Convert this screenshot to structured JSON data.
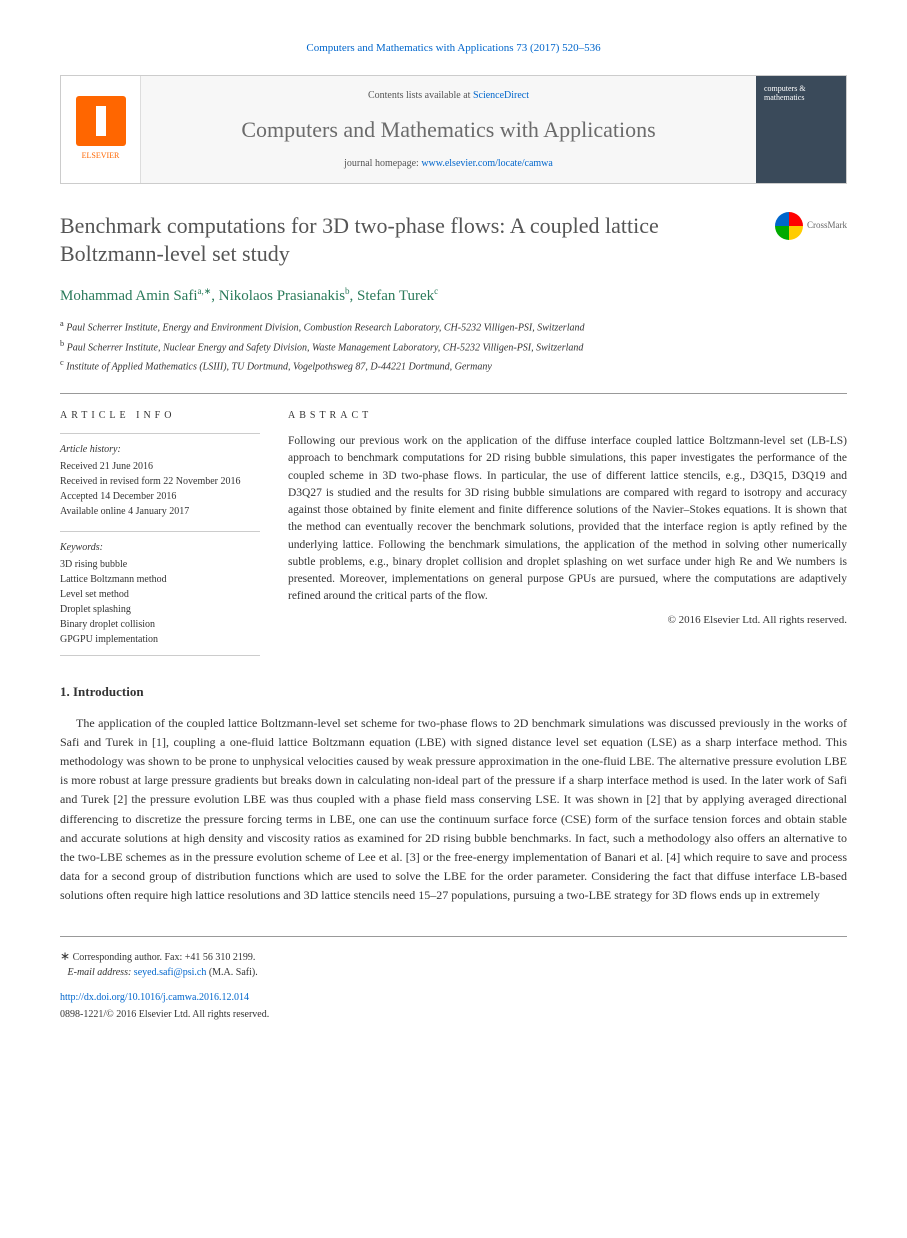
{
  "citation": "Computers and Mathematics with Applications 73 (2017) 520–536",
  "masthead": {
    "publisher_label": "ELSEVIER",
    "contents_prefix": "Contents lists available at ",
    "contents_link": "ScienceDirect",
    "journal_name": "Computers and Mathematics with Applications",
    "homepage_prefix": "journal homepage: ",
    "homepage_url": "www.elsevier.com/locate/camwa",
    "cover_text": "computers & mathematics"
  },
  "article": {
    "title": "Benchmark computations for 3D two-phase flows: A coupled lattice Boltzmann-level set study",
    "crossmark_label": "CrossMark"
  },
  "authors": {
    "a1_name": "Mohammad Amin Safi",
    "a1_sup": "a,∗",
    "a2_name": "Nikolaos Prasianakis",
    "a2_sup": "b",
    "a3_name": "Stefan Turek",
    "a3_sup": "c"
  },
  "affiliations": {
    "a": "Paul Scherrer Institute, Energy and Environment Division, Combustion Research Laboratory, CH-5232 Villigen-PSI, Switzerland",
    "b": "Paul Scherrer Institute, Nuclear Energy and Safety Division, Waste Management Laboratory, CH-5232 Villigen-PSI, Switzerland",
    "c": "Institute of Applied Mathematics (LSIII), TU Dortmund, Vogelpothsweg 87, D-44221 Dortmund, Germany"
  },
  "info": {
    "section_label": "ARTICLE INFO",
    "history_heading": "Article history:",
    "received": "Received 21 June 2016",
    "revised": "Received in revised form 22 November 2016",
    "accepted": "Accepted 14 December 2016",
    "online": "Available online 4 January 2017",
    "keywords_heading": "Keywords:",
    "kw1": "3D rising bubble",
    "kw2": "Lattice Boltzmann method",
    "kw3": "Level set method",
    "kw4": "Droplet splashing",
    "kw5": "Binary droplet collision",
    "kw6": "GPGPU implementation"
  },
  "abstract": {
    "section_label": "ABSTRACT",
    "text": "Following our previous work on the application of the diffuse interface coupled lattice Boltzmann-level set (LB-LS) approach to benchmark computations for 2D rising bubble simulations, this paper investigates the performance of the coupled scheme in 3D two-phase flows. In particular, the use of different lattice stencils, e.g., D3Q15, D3Q19 and D3Q27 is studied and the results for 3D rising bubble simulations are compared with regard to isotropy and accuracy against those obtained by finite element and finite difference solutions of the Navier–Stokes equations. It is shown that the method can eventually recover the benchmark solutions, provided that the interface region is aptly refined by the underlying lattice. Following the benchmark simulations, the application of the method in solving other numerically subtle problems, e.g., binary droplet collision and droplet splashing on wet surface under high Re and We numbers is presented. Moreover, implementations on general purpose GPUs are pursued, where the computations are adaptively refined around the critical parts of the flow.",
    "copyright": "© 2016 Elsevier Ltd. All rights reserved."
  },
  "intro": {
    "heading": "1. Introduction",
    "paragraph": "The application of the coupled lattice Boltzmann-level set scheme for two-phase flows to 2D benchmark simulations was discussed previously in the works of Safi and Turek in [1], coupling a one-fluid lattice Boltzmann equation (LBE) with signed distance level set equation (LSE) as a sharp interface method. This methodology was shown to be prone to unphysical velocities caused by weak pressure approximation in the one-fluid LBE. The alternative pressure evolution LBE is more robust at large pressure gradients but breaks down in calculating non-ideal part of the pressure if a sharp interface method is used. In the later work of Safi and Turek [2] the pressure evolution LBE was thus coupled with a phase field mass conserving LSE. It was shown in [2] that by applying averaged directional differencing to discretize the pressure forcing terms in LBE, one can use the continuum surface force (CSE) form of the surface tension forces and obtain stable and accurate solutions at high density and viscosity ratios as examined for 2D rising bubble benchmarks. In fact, such a methodology also offers an alternative to the two-LBE schemes as in the pressure evolution scheme of Lee et al. [3] or the free-energy implementation of Banari et al. [4] which require to save and process data for a second group of distribution functions which are used to solve the LBE for the order parameter. Considering the fact that diffuse interface LB-based solutions often require high lattice resolutions and 3D lattice stencils need 15–27 populations, pursuing a two-LBE strategy for 3D flows ends up in extremely"
  },
  "footer": {
    "corresp_marker": "∗",
    "corresp_text": "Corresponding author. Fax: +41 56 310 2199.",
    "email_label": "E-mail address:",
    "email": "seyed.safi@psi.ch",
    "email_owner": "(M.A. Safi).",
    "doi": "http://dx.doi.org/10.1016/j.camwa.2016.12.014",
    "issn_line": "0898-1221/© 2016 Elsevier Ltd. All rights reserved."
  },
  "colors": {
    "link": "#0066cc",
    "author": "#2a7a5a",
    "title_gray": "#555555",
    "border": "#cccccc",
    "elsevier_orange": "#ff6600"
  }
}
